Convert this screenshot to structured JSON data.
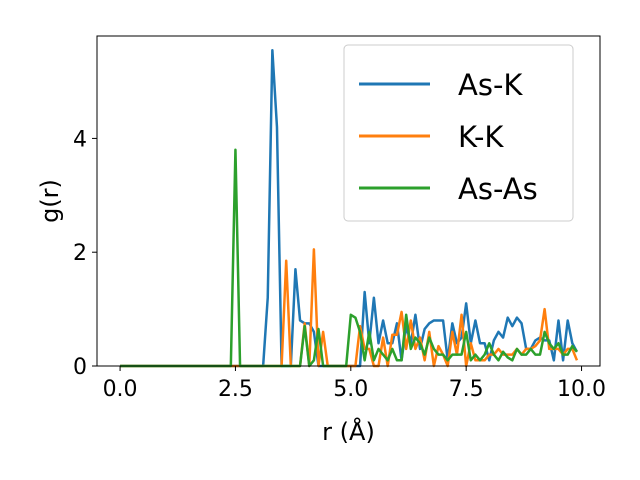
{
  "chart_data": {
    "type": "line",
    "xlabel": "r (Å)",
    "ylabel": "g(r)",
    "xlim": [
      -0.5,
      10.4
    ],
    "ylim": [
      0,
      5.8
    ],
    "x_ticks": [
      "0.0",
      "2.5",
      "5.0",
      "7.5",
      "10.0"
    ],
    "x_tick_values": [
      0,
      2.5,
      5,
      7.5,
      10
    ],
    "y_ticks": [
      "0",
      "2",
      "4"
    ],
    "y_tick_values": [
      0,
      2,
      4
    ],
    "legend_position": "top-right",
    "grid": false,
    "series": [
      {
        "name": "As-K",
        "color": "#1f77b4",
        "points": [
          [
            0,
            0
          ],
          [
            1,
            0
          ],
          [
            2,
            0
          ],
          [
            3.0,
            0
          ],
          [
            3.1,
            0
          ],
          [
            3.2,
            1.2
          ],
          [
            3.3,
            5.55
          ],
          [
            3.4,
            4.2
          ],
          [
            3.5,
            0
          ],
          [
            3.6,
            0
          ],
          [
            3.7,
            0
          ],
          [
            3.8,
            1.7
          ],
          [
            3.9,
            0.8
          ],
          [
            4.0,
            0.75
          ],
          [
            4.1,
            0.75
          ],
          [
            4.2,
            0.6
          ],
          [
            4.3,
            0
          ],
          [
            4.4,
            0
          ],
          [
            5.0,
            0
          ],
          [
            5.2,
            0
          ],
          [
            5.3,
            1.3
          ],
          [
            5.4,
            0.4
          ],
          [
            5.5,
            1.2
          ],
          [
            5.6,
            0.4
          ],
          [
            5.7,
            0.8
          ],
          [
            5.8,
            0.4
          ],
          [
            5.9,
            0.4
          ],
          [
            6.0,
            0.75
          ],
          [
            6.1,
            0.1
          ],
          [
            6.2,
            0.7
          ],
          [
            6.3,
            0.4
          ],
          [
            6.4,
            0.9
          ],
          [
            6.5,
            0.3
          ],
          [
            6.6,
            0.65
          ],
          [
            6.7,
            0.75
          ],
          [
            6.8,
            0.8
          ],
          [
            6.9,
            0.8
          ],
          [
            7.0,
            0.8
          ],
          [
            7.1,
            0.1
          ],
          [
            7.2,
            0.75
          ],
          [
            7.3,
            0.4
          ],
          [
            7.4,
            0.5
          ],
          [
            7.5,
            1.1
          ],
          [
            7.6,
            0.4
          ],
          [
            7.7,
            0.8
          ],
          [
            7.8,
            0.4
          ],
          [
            7.9,
            0.4
          ],
          [
            8.0,
            0.1
          ],
          [
            8.1,
            0.45
          ],
          [
            8.2,
            0.6
          ],
          [
            8.3,
            0.5
          ],
          [
            8.4,
            0.85
          ],
          [
            8.5,
            0.7
          ],
          [
            8.6,
            0.85
          ],
          [
            8.7,
            0.75
          ],
          [
            8.8,
            0.3
          ],
          [
            8.9,
            0.3
          ],
          [
            9.0,
            0.45
          ],
          [
            9.1,
            0.5
          ],
          [
            9.2,
            0.45
          ],
          [
            9.3,
            0.45
          ],
          [
            9.4,
            0.1
          ],
          [
            9.5,
            0.8
          ],
          [
            9.6,
            0.1
          ],
          [
            9.7,
            0.8
          ],
          [
            9.8,
            0.4
          ],
          [
            9.9,
            0.25
          ]
        ]
      },
      {
        "name": "K-K",
        "color": "#ff7f0e",
        "points": [
          [
            0,
            0
          ],
          [
            1,
            0
          ],
          [
            2,
            0
          ],
          [
            3.0,
            0
          ],
          [
            3.5,
            0
          ],
          [
            3.6,
            1.85
          ],
          [
            3.7,
            0
          ],
          [
            3.8,
            0
          ],
          [
            3.9,
            0
          ],
          [
            4.0,
            0.75
          ],
          [
            4.1,
            0
          ],
          [
            4.2,
            2.05
          ],
          [
            4.3,
            0
          ],
          [
            4.4,
            0.6
          ],
          [
            4.5,
            0
          ],
          [
            4.6,
            0
          ],
          [
            5.0,
            0
          ],
          [
            5.1,
            0
          ],
          [
            5.2,
            0.7
          ],
          [
            5.3,
            0.3
          ],
          [
            5.4,
            0.3
          ],
          [
            5.5,
            0
          ],
          [
            5.6,
            0
          ],
          [
            5.7,
            0.5
          ],
          [
            5.8,
            0
          ],
          [
            5.9,
            0.55
          ],
          [
            6.0,
            0.55
          ],
          [
            6.1,
            0.95
          ],
          [
            6.2,
            0.3
          ],
          [
            6.3,
            0.8
          ],
          [
            6.4,
            0.3
          ],
          [
            6.5,
            0.5
          ],
          [
            6.6,
            0.1
          ],
          [
            6.7,
            0.6
          ],
          [
            6.8,
            0
          ],
          [
            6.9,
            0.35
          ],
          [
            7.0,
            0.2
          ],
          [
            7.1,
            0
          ],
          [
            7.2,
            0.6
          ],
          [
            7.3,
            0.2
          ],
          [
            7.4,
            0.9
          ],
          [
            7.5,
            0
          ],
          [
            7.6,
            0.4
          ],
          [
            7.7,
            0.1
          ],
          [
            7.8,
            0.1
          ],
          [
            7.9,
            0.1
          ],
          [
            8.0,
            0.2
          ],
          [
            8.1,
            0.2
          ],
          [
            8.2,
            0.3
          ],
          [
            8.3,
            0.2
          ],
          [
            8.4,
            0.2
          ],
          [
            8.5,
            0.2
          ],
          [
            8.6,
            0.3
          ],
          [
            8.7,
            0.2
          ],
          [
            8.8,
            0.3
          ],
          [
            8.9,
            0.3
          ],
          [
            9.0,
            0.35
          ],
          [
            9.1,
            0.45
          ],
          [
            9.2,
            1.0
          ],
          [
            9.3,
            0.3
          ],
          [
            9.4,
            0.3
          ],
          [
            9.5,
            0.3
          ],
          [
            9.6,
            0.2
          ],
          [
            9.7,
            0.3
          ],
          [
            9.8,
            0.3
          ],
          [
            9.9,
            0.1
          ]
        ]
      },
      {
        "name": "As-As",
        "color": "#2ca02c",
        "points": [
          [
            0,
            0
          ],
          [
            1,
            0
          ],
          [
            2,
            0
          ],
          [
            2.3,
            0
          ],
          [
            2.4,
            0
          ],
          [
            2.5,
            3.8
          ],
          [
            2.6,
            0
          ],
          [
            2.7,
            0
          ],
          [
            3.0,
            0
          ],
          [
            3.9,
            0
          ],
          [
            4.0,
            0.7
          ],
          [
            4.1,
            0
          ],
          [
            4.2,
            0.1
          ],
          [
            4.3,
            0.65
          ],
          [
            4.4,
            0
          ],
          [
            4.5,
            0
          ],
          [
            4.8,
            0
          ],
          [
            4.9,
            0
          ],
          [
            5.0,
            0.9
          ],
          [
            5.1,
            0.85
          ],
          [
            5.2,
            0.6
          ],
          [
            5.3,
            0.1
          ],
          [
            5.4,
            0.6
          ],
          [
            5.5,
            0.1
          ],
          [
            5.6,
            0.3
          ],
          [
            5.7,
            0.2
          ],
          [
            5.8,
            0.1
          ],
          [
            5.9,
            0.3
          ],
          [
            6.0,
            0.1
          ],
          [
            6.1,
            0.1
          ],
          [
            6.2,
            0.9
          ],
          [
            6.3,
            0.3
          ],
          [
            6.4,
            0.5
          ],
          [
            6.5,
            0.4
          ],
          [
            6.6,
            0.2
          ],
          [
            6.7,
            0.5
          ],
          [
            6.8,
            0.3
          ],
          [
            6.9,
            0.2
          ],
          [
            7.0,
            0.2
          ],
          [
            7.1,
            0.1
          ],
          [
            7.2,
            0.2
          ],
          [
            7.3,
            0.2
          ],
          [
            7.4,
            0.2
          ],
          [
            7.5,
            0.6
          ],
          [
            7.6,
            0.1
          ],
          [
            7.7,
            0.2
          ],
          [
            7.8,
            0.1
          ],
          [
            7.9,
            0.2
          ],
          [
            8.0,
            0.4
          ],
          [
            8.1,
            0.2
          ],
          [
            8.2,
            0.1
          ],
          [
            8.3,
            0.25
          ],
          [
            8.4,
            0.15
          ],
          [
            8.5,
            0.1
          ],
          [
            8.6,
            0.3
          ],
          [
            8.7,
            0.2
          ],
          [
            8.8,
            0.2
          ],
          [
            8.9,
            0.3
          ],
          [
            9.0,
            0.2
          ],
          [
            9.1,
            0.2
          ],
          [
            9.2,
            0.6
          ],
          [
            9.3,
            0.4
          ],
          [
            9.4,
            0.3
          ],
          [
            9.5,
            0.4
          ],
          [
            9.6,
            0.2
          ],
          [
            9.7,
            0.2
          ],
          [
            9.8,
            0.35
          ],
          [
            9.9,
            0.25
          ]
        ]
      }
    ]
  }
}
